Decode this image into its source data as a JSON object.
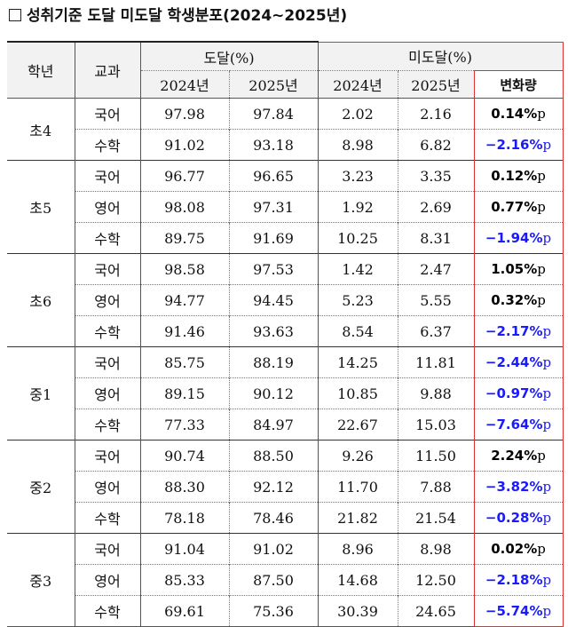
{
  "title": "성취기준 도달 미도달 학생분포(2024~2025년)",
  "headers": {
    "grade": "학년",
    "subject": "교과",
    "reach": "도달(%)",
    "nonreach": "미도달(%)",
    "y2024": "2024년",
    "y2025": "2025년",
    "change": "변화량"
  },
  "unit": "p",
  "groups": [
    {
      "grade": "초4",
      "rows": [
        {
          "subject": "국어",
          "r24": "97.98",
          "r25": "97.84",
          "n24": "2.02",
          "n25": "2.16",
          "chg": "0.14%",
          "neg": false
        },
        {
          "subject": "수학",
          "r24": "91.02",
          "r25": "93.18",
          "n24": "8.98",
          "n25": "6.82",
          "chg": "−2.16%",
          "neg": true
        }
      ]
    },
    {
      "grade": "초5",
      "rows": [
        {
          "subject": "국어",
          "r24": "96.77",
          "r25": "96.65",
          "n24": "3.23",
          "n25": "3.35",
          "chg": "0.12%",
          "neg": false
        },
        {
          "subject": "영어",
          "r24": "98.08",
          "r25": "97.31",
          "n24": "1.92",
          "n25": "2.69",
          "chg": "0.77%",
          "neg": false
        },
        {
          "subject": "수학",
          "r24": "89.75",
          "r25": "91.69",
          "n24": "10.25",
          "n25": "8.31",
          "chg": "−1.94%",
          "neg": true
        }
      ]
    },
    {
      "grade": "초6",
      "rows": [
        {
          "subject": "국어",
          "r24": "98.58",
          "r25": "97.53",
          "n24": "1.42",
          "n25": "2.47",
          "chg": "1.05%",
          "neg": false
        },
        {
          "subject": "영어",
          "r24": "94.77",
          "r25": "94.45",
          "n24": "5.23",
          "n25": "5.55",
          "chg": "0.32%",
          "neg": false
        },
        {
          "subject": "수학",
          "r24": "91.46",
          "r25": "93.63",
          "n24": "8.54",
          "n25": "6.37",
          "chg": "−2.17%",
          "neg": true
        }
      ]
    },
    {
      "grade": "중1",
      "rows": [
        {
          "subject": "국어",
          "r24": "85.75",
          "r25": "88.19",
          "n24": "14.25",
          "n25": "11.81",
          "chg": "−2.44%",
          "neg": true
        },
        {
          "subject": "영어",
          "r24": "89.15",
          "r25": "90.12",
          "n24": "10.85",
          "n25": "9.88",
          "chg": "−0.97%",
          "neg": true
        },
        {
          "subject": "수학",
          "r24": "77.33",
          "r25": "84.97",
          "n24": "22.67",
          "n25": "15.03",
          "chg": "−7.64%",
          "neg": true
        }
      ]
    },
    {
      "grade": "중2",
      "rows": [
        {
          "subject": "국어",
          "r24": "90.74",
          "r25": "88.50",
          "n24": "9.26",
          "n25": "11.50",
          "chg": "2.24%",
          "neg": false
        },
        {
          "subject": "영어",
          "r24": "88.30",
          "r25": "92.12",
          "n24": "11.70",
          "n25": "7.88",
          "chg": "−3.82%",
          "neg": true
        },
        {
          "subject": "수학",
          "r24": "78.18",
          "r25": "78.46",
          "n24": "21.82",
          "n25": "21.54",
          "chg": "−0.28%",
          "neg": true
        }
      ]
    },
    {
      "grade": "중3",
      "rows": [
        {
          "subject": "국어",
          "r24": "91.04",
          "r25": "91.02",
          "n24": "8.96",
          "n25": "8.98",
          "chg": "0.02%",
          "neg": false
        },
        {
          "subject": "영어",
          "r24": "85.33",
          "r25": "87.50",
          "n24": "14.68",
          "n25": "12.50",
          "chg": "−2.18%",
          "neg": true
        },
        {
          "subject": "수학",
          "r24": "69.61",
          "r25": "75.36",
          "n24": "30.39",
          "n25": "24.65",
          "chg": "−5.74%",
          "neg": true
        }
      ]
    }
  ],
  "colors": {
    "negative": "#1a1aff",
    "positive": "#000000",
    "highlight_border": "#e03030",
    "header_bg": "#f2f2f2"
  }
}
